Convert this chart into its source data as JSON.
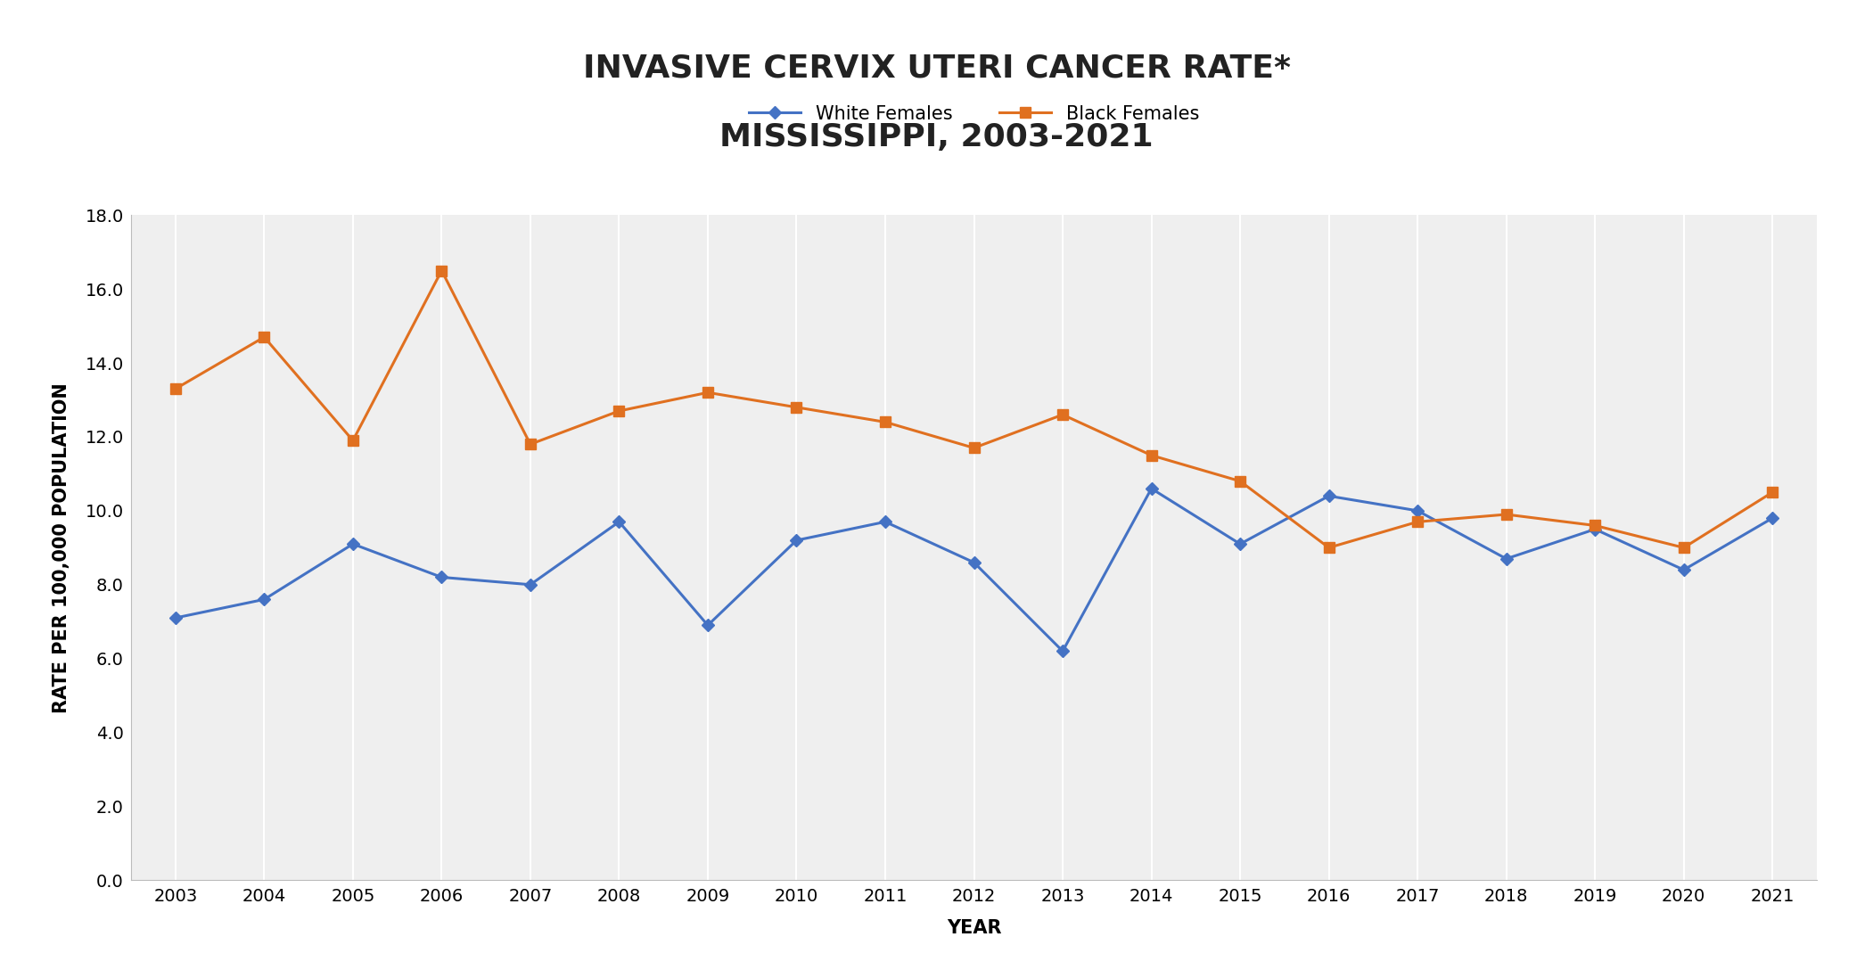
{
  "title_line1": "INVASIVE CERVIX UTERI CANCER RATE*",
  "title_line2": "MISSISSIPPI, 2003-2021",
  "xlabel": "YEAR",
  "ylabel": "RATE PER 100,000 POPULATION",
  "years": [
    2003,
    2004,
    2005,
    2006,
    2007,
    2008,
    2009,
    2010,
    2011,
    2012,
    2013,
    2014,
    2015,
    2016,
    2017,
    2018,
    2019,
    2020,
    2021
  ],
  "white_females": [
    7.1,
    7.6,
    9.1,
    8.2,
    8.0,
    9.7,
    6.9,
    9.2,
    9.7,
    8.6,
    6.2,
    10.6,
    9.1,
    10.4,
    10.0,
    8.7,
    9.5,
    8.4,
    9.8
  ],
  "black_females": [
    13.3,
    14.7,
    11.9,
    16.5,
    11.8,
    12.7,
    13.2,
    12.8,
    12.4,
    11.7,
    12.6,
    11.5,
    10.8,
    9.0,
    9.7,
    9.9,
    9.6,
    9.0,
    10.5
  ],
  "white_color": "#4472C4",
  "black_color": "#E07020",
  "white_label": "White Females",
  "black_label": "Black Females",
  "ylim_min": 0.0,
  "ylim_max": 18.0,
  "ytick_step": 2.0,
  "title_fontsize": 26,
  "axis_label_fontsize": 15,
  "tick_label_fontsize": 14,
  "legend_fontsize": 15,
  "background_color": "#ffffff",
  "plot_bg_color": "#efefef",
  "grid_color": "#ffffff"
}
